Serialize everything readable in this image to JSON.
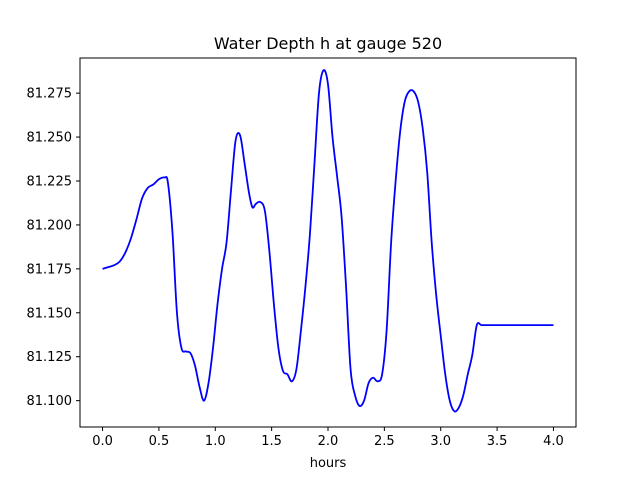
{
  "chart_data": {
    "type": "line",
    "title": "Water Depth h at gauge 520",
    "xlabel": "hours",
    "ylabel": "",
    "xlim": [
      -0.2,
      4.2
    ],
    "ylim": [
      81.085,
      81.295
    ],
    "xticks": [
      0.0,
      0.5,
      1.0,
      1.5,
      2.0,
      2.5,
      3.0,
      3.5,
      4.0
    ],
    "xtick_labels": [
      "0.0",
      "0.5",
      "1.0",
      "1.5",
      "2.0",
      "2.5",
      "3.0",
      "3.5",
      "4.0"
    ],
    "yticks": [
      81.1,
      81.125,
      81.15,
      81.175,
      81.2,
      81.225,
      81.25,
      81.275
    ],
    "ytick_labels": [
      "81.100",
      "81.125",
      "81.150",
      "81.175",
      "81.200",
      "81.225",
      "81.250",
      "81.275"
    ],
    "grid": false,
    "series": [
      {
        "color": "#0000ff",
        "x": [
          0.0,
          0.05,
          0.1,
          0.15,
          0.2,
          0.25,
          0.3,
          0.35,
          0.4,
          0.45,
          0.5,
          0.55,
          0.58,
          0.62,
          0.66,
          0.7,
          0.74,
          0.78,
          0.82,
          0.86,
          0.9,
          0.94,
          0.98,
          1.02,
          1.06,
          1.1,
          1.14,
          1.18,
          1.22,
          1.26,
          1.3,
          1.33,
          1.36,
          1.4,
          1.44,
          1.48,
          1.52,
          1.56,
          1.6,
          1.64,
          1.68,
          1.72,
          1.76,
          1.8,
          1.84,
          1.88,
          1.92,
          1.96,
          2.0,
          2.04,
          2.08,
          2.12,
          2.16,
          2.2,
          2.24,
          2.28,
          2.32,
          2.36,
          2.4,
          2.44,
          2.48,
          2.52,
          2.56,
          2.6,
          2.64,
          2.68,
          2.72,
          2.76,
          2.8,
          2.84,
          2.88,
          2.92,
          2.96,
          3.0,
          3.04,
          3.08,
          3.12,
          3.16,
          3.2,
          3.24,
          3.28,
          3.32,
          3.36,
          3.4,
          3.44,
          3.48,
          3.52,
          3.56,
          3.6,
          3.64,
          3.68,
          3.72,
          3.76,
          3.8,
          3.84,
          3.88,
          3.92,
          3.96,
          4.0
        ],
        "y": [
          81.175,
          81.176,
          81.177,
          81.179,
          81.184,
          81.192,
          81.203,
          81.215,
          81.221,
          81.223,
          81.226,
          81.227,
          81.224,
          81.196,
          81.15,
          81.13,
          81.128,
          81.127,
          81.12,
          81.108,
          81.1,
          81.11,
          81.13,
          81.155,
          81.175,
          81.19,
          81.22,
          81.248,
          81.251,
          81.235,
          81.218,
          81.21,
          81.212,
          81.213,
          81.208,
          81.185,
          81.155,
          81.13,
          81.117,
          81.115,
          81.111,
          81.118,
          81.14,
          81.165,
          81.195,
          81.235,
          81.275,
          81.288,
          81.28,
          81.25,
          81.228,
          81.205,
          81.165,
          81.118,
          81.103,
          81.097,
          81.1,
          81.11,
          81.113,
          81.111,
          81.115,
          81.14,
          81.19,
          81.225,
          81.253,
          81.27,
          81.276,
          81.276,
          81.27,
          81.255,
          81.23,
          81.19,
          81.16,
          81.137,
          81.115,
          81.1,
          81.094,
          81.096,
          81.103,
          81.115,
          81.126,
          81.143,
          81.143,
          81.143,
          81.143,
          81.143,
          81.143,
          81.143,
          81.143,
          81.143,
          81.143,
          81.143,
          81.143,
          81.143,
          81.143,
          81.143,
          81.143,
          81.143,
          81.143
        ]
      }
    ]
  }
}
